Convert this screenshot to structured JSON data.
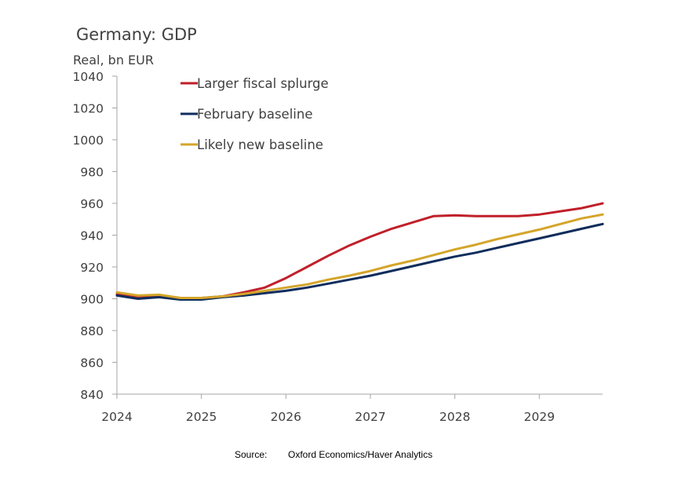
{
  "chart_data": {
    "type": "line",
    "title": "Germany: GDP",
    "ylabel": "Real, bn EUR",
    "xlabel": "",
    "ylim": [
      840,
      1040
    ],
    "yticks": [
      840,
      860,
      880,
      900,
      920,
      940,
      960,
      980,
      1000,
      1020,
      1040
    ],
    "xlim": [
      2024,
      2029.75
    ],
    "xticks": [
      "2024",
      "2025",
      "2026",
      "2027",
      "2028",
      "2029"
    ],
    "x": [
      2024,
      2024.25,
      2024.5,
      2024.75,
      2025,
      2025.25,
      2025.5,
      2025.75,
      2026,
      2026.25,
      2026.5,
      2026.75,
      2027,
      2027.25,
      2027.5,
      2027.75,
      2028,
      2028.25,
      2028.5,
      2028.75,
      2029,
      2029.25,
      2029.5,
      2029.75
    ],
    "series": [
      {
        "name": "Larger fiscal splurge",
        "color": "#c0202a",
        "values": [
          903,
          901.5,
          902,
          900.5,
          900.5,
          901.5,
          904,
          907,
          913,
          920,
          927,
          933.5,
          939,
          944,
          948,
          952,
          952.5,
          952,
          952,
          952,
          953,
          955,
          957,
          960
        ]
      },
      {
        "name": "February baseline",
        "color": "#0f2d5c",
        "values": [
          902,
          900,
          901,
          899.5,
          899.5,
          901,
          902,
          903.5,
          905,
          907,
          909.5,
          912,
          914.5,
          917.5,
          920.5,
          923.5,
          926.5,
          929,
          932,
          935,
          938,
          941,
          944,
          947
        ]
      },
      {
        "name": "Likely new baseline",
        "color": "#d4a52a",
        "values": [
          904,
          902,
          902.5,
          900.5,
          900.5,
          901.5,
          903,
          905,
          907,
          909,
          912,
          914.5,
          917.5,
          921,
          924,
          927.5,
          931,
          934,
          937.5,
          940.5,
          943.5,
          947,
          950.5,
          953
        ]
      }
    ],
    "legend_position": "top-left"
  },
  "source": {
    "label": "Source:",
    "text": "Oxford Economics/Haver Analytics"
  }
}
